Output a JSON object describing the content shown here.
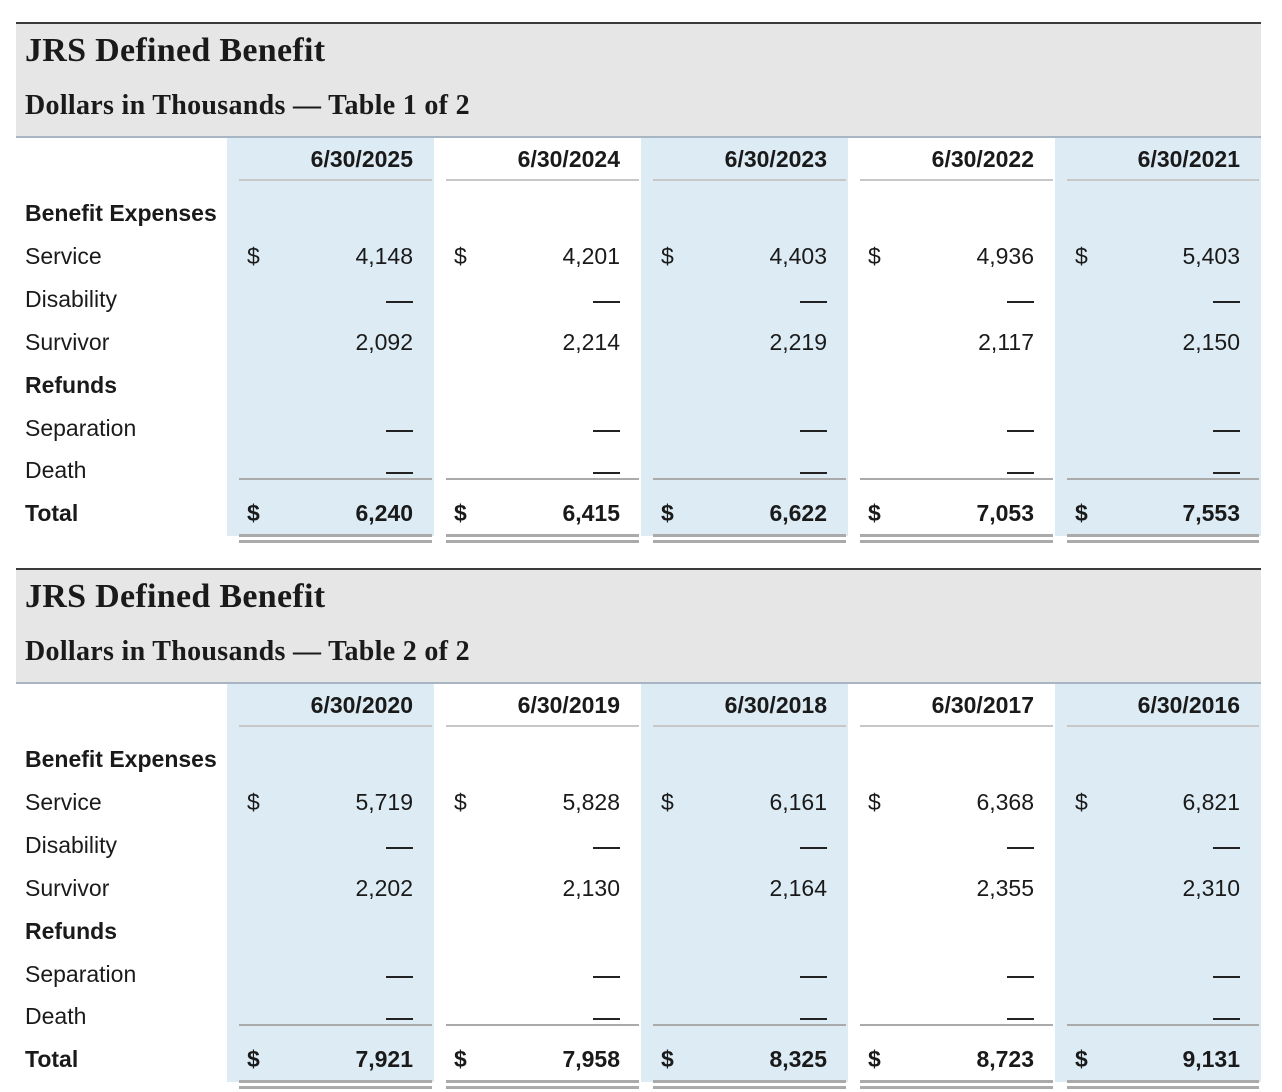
{
  "tables": [
    {
      "title": "JRS Defined Benefit",
      "subtitle": "Dollars in Thousands — Table 1 of 2",
      "columns": [
        "6/30/2025",
        "6/30/2024",
        "6/30/2023",
        "6/30/2022",
        "6/30/2021"
      ],
      "currency_symbol": "$",
      "rows": [
        {
          "label": "Benefit Expenses",
          "type": "header"
        },
        {
          "label": "Service",
          "type": "data",
          "dollar": true,
          "values": [
            "4,148",
            "4,201",
            "4,403",
            "4,936",
            "5,403"
          ]
        },
        {
          "label": "Disability",
          "type": "data",
          "dollar": false,
          "values": [
            "—",
            "—",
            "—",
            "—",
            "—"
          ]
        },
        {
          "label": "Survivor",
          "type": "data",
          "dollar": false,
          "values": [
            "2,092",
            "2,214",
            "2,219",
            "2,117",
            "2,150"
          ]
        },
        {
          "label": "Refunds",
          "type": "header"
        },
        {
          "label": "Separation",
          "type": "data",
          "dollar": false,
          "values": [
            "—",
            "—",
            "—",
            "—",
            "—"
          ]
        },
        {
          "label": "Death",
          "type": "data",
          "dollar": false,
          "values": [
            "—",
            "—",
            "—",
            "—",
            "—"
          ]
        },
        {
          "label": "Total",
          "type": "total",
          "dollar": true,
          "values": [
            "6,240",
            "6,415",
            "6,622",
            "7,053",
            "7,553"
          ]
        }
      ]
    },
    {
      "title": "JRS Defined Benefit",
      "subtitle": "Dollars in Thousands — Table 2 of 2",
      "columns": [
        "6/30/2020",
        "6/30/2019",
        "6/30/2018",
        "6/30/2017",
        "6/30/2016"
      ],
      "currency_symbol": "$",
      "rows": [
        {
          "label": "Benefit Expenses",
          "type": "header"
        },
        {
          "label": "Service",
          "type": "data",
          "dollar": true,
          "values": [
            "5,719",
            "5,828",
            "6,161",
            "6,368",
            "6,821"
          ]
        },
        {
          "label": "Disability",
          "type": "data",
          "dollar": false,
          "values": [
            "—",
            "—",
            "—",
            "—",
            "—"
          ]
        },
        {
          "label": "Survivor",
          "type": "data",
          "dollar": false,
          "values": [
            "2,202",
            "2,130",
            "2,164",
            "2,355",
            "2,310"
          ]
        },
        {
          "label": "Refunds",
          "type": "header"
        },
        {
          "label": "Separation",
          "type": "data",
          "dollar": false,
          "values": [
            "—",
            "—",
            "—",
            "—",
            "—"
          ]
        },
        {
          "label": "Death",
          "type": "data",
          "dollar": false,
          "values": [
            "—",
            "—",
            "—",
            "—",
            "—"
          ]
        },
        {
          "label": "Total",
          "type": "total",
          "dollar": true,
          "values": [
            "7,921",
            "7,958",
            "8,325",
            "8,723",
            "9,131"
          ]
        }
      ]
    }
  ]
}
